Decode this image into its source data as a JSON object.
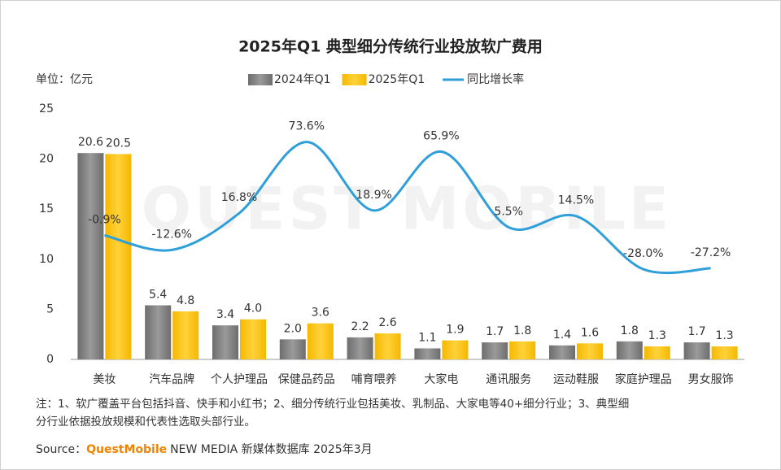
{
  "chart_data": {
    "type": "bar_line",
    "title": "2025年Q1 典型细分传统行业投放软广费用",
    "unit_label": "单位：亿元",
    "watermark": "QUEST MOBILE",
    "categories": [
      "美妆",
      "汽车品牌",
      "个人护理品",
      "保健品药品",
      "哺育喂养",
      "大家电",
      "通讯服务",
      "运动鞋服",
      "家庭护理品",
      "男女服饰"
    ],
    "series": [
      {
        "name": "2024年Q1",
        "color": "#7f7f7f",
        "type": "bar",
        "values": [
          20.6,
          5.4,
          3.4,
          2.0,
          2.2,
          1.1,
          1.7,
          1.4,
          1.8,
          1.7
        ],
        "value_labels": [
          "20.6",
          "5.4",
          "3.4",
          "2.0",
          "2.2",
          "1.1",
          "1.7",
          "1.4",
          "1.8",
          "1.7"
        ]
      },
      {
        "name": "2025年Q1",
        "color": "#ffc000",
        "type": "bar",
        "values": [
          20.5,
          4.8,
          4.0,
          3.6,
          2.6,
          1.9,
          1.8,
          1.6,
          1.3,
          1.3
        ],
        "value_labels": [
          "20.5",
          "4.8",
          "4.0",
          "3.6",
          "2.6",
          "1.9",
          "1.8",
          "1.6",
          "1.3",
          "1.3"
        ]
      },
      {
        "name": "同比增长率",
        "color": "#2e9fd8",
        "type": "line",
        "axis": "y2",
        "values": [
          -0.9,
          -12.6,
          16.8,
          73.6,
          18.9,
          65.9,
          5.5,
          14.5,
          -28.0,
          -27.2
        ],
        "value_labels": [
          "-0.9%",
          "-12.6%",
          "16.8%",
          "73.6%",
          "18.9%",
          "65.9%",
          "5.5%",
          "14.5%",
          "-28.0%",
          "-27.2%"
        ]
      }
    ],
    "ylim": [
      0,
      25
    ],
    "yticks": [
      0,
      5,
      10,
      15,
      20,
      25
    ],
    "y2lim": [
      -100,
      100
    ],
    "notes": [
      "注：1、软广覆盖平台包括抖音、快手和小红书；2、细分传统行业包括美妆、乳制品、大家电等40+细分行业；3、典型细",
      "分行业依据投放规模和代表性选取头部行业。"
    ],
    "source_label": "Source：",
    "source_brand": "QuestMobile",
    "source_text": "NEW MEDIA 新媒体数据库 2025年3月"
  }
}
